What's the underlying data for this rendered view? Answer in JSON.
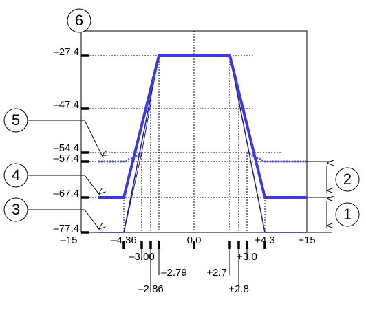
{
  "y_labels": [
    "–27.4",
    "–47.4",
    "–54.4",
    "–57.4",
    "–67.4",
    "–77.4"
  ],
  "x_labels": {
    "left_end": "–15",
    "a": "–4.36",
    "b": "–3.00",
    "c": "–2.86",
    "d": "–2.79",
    "center": "0.0",
    "e": "+2.7",
    "f": "+2.8",
    "g": "+3.0",
    "h": "+4.3",
    "right_end": "+15"
  },
  "callouts": [
    "1",
    "2",
    "3",
    "4",
    "5",
    "6"
  ]
}
